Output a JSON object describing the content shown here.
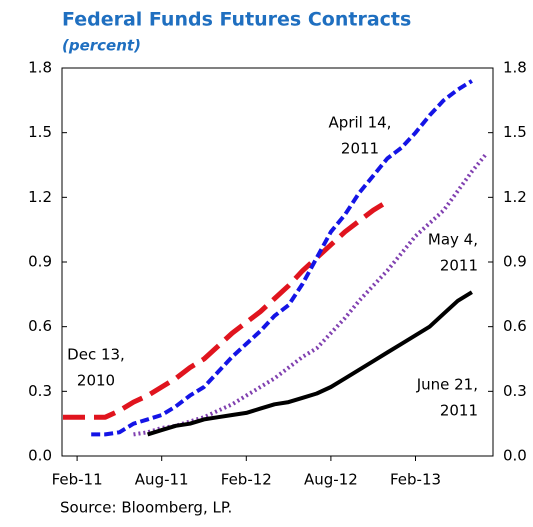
{
  "chart_data": {
    "type": "line",
    "title": "Federal Funds Futures Contracts",
    "subtitle": "(percent)",
    "source": "Source:  Bloomberg, LP.",
    "categories": [
      null,
      "Feb-11",
      null,
      null,
      null,
      null,
      null,
      "Aug-11",
      null,
      null,
      null,
      null,
      null,
      "Feb-12",
      null,
      null,
      null,
      null,
      null,
      "Aug-12",
      null,
      null,
      null,
      null,
      null,
      "Feb-13",
      null,
      null,
      null,
      null,
      null
    ],
    "ylim": [
      0,
      1.8
    ],
    "yticks": [
      {
        "value": 0,
        "label": "0.0"
      },
      0.3,
      0.6,
      0.9,
      1.2,
      1.5,
      1.8
    ],
    "y2lim": [
      0,
      1.8
    ],
    "y2ticks": [
      {
        "value": 0,
        "label": "0.0"
      },
      0.3,
      0.6,
      0.9,
      1.2,
      1.5,
      1.8
    ],
    "series": [
      {
        "label": [
          "Dec 13,",
          "2010"
        ],
        "color": "#e0141e",
        "dash": "22 9",
        "width": 5,
        "values": [
          0.18,
          0.18,
          0.18,
          0.18,
          0.21,
          0.25,
          0.28,
          0.32,
          0.36,
          0.41,
          0.45,
          0.51,
          0.57,
          0.62,
          0.67,
          0.73,
          0.79,
          0.86,
          0.92,
          0.98,
          1.04,
          1.09,
          1.14,
          1.18,
          null,
          null,
          null,
          null,
          null,
          null,
          null
        ]
      },
      {
        "label": [
          "April 14,",
          "2011"
        ],
        "color": "#1414e6",
        "dash": "9 4",
        "width": 4,
        "values": [
          null,
          null,
          0.1,
          0.1,
          0.11,
          0.15,
          0.17,
          0.19,
          0.23,
          0.28,
          0.32,
          0.39,
          0.46,
          0.52,
          0.58,
          0.65,
          0.7,
          0.8,
          0.92,
          1.04,
          1.12,
          1.22,
          1.3,
          1.38,
          1.43,
          1.5,
          1.58,
          1.65,
          1.7,
          1.74,
          null
        ]
      },
      {
        "label": [
          "May 4,",
          "2011"
        ],
        "color": "#8040b0",
        "dash": "2 3",
        "width": 4,
        "values": [
          null,
          null,
          null,
          null,
          null,
          0.1,
          0.11,
          0.13,
          0.14,
          0.16,
          0.18,
          0.21,
          0.24,
          0.28,
          0.32,
          0.36,
          0.41,
          0.46,
          0.5,
          0.57,
          0.64,
          0.72,
          0.79,
          0.86,
          0.94,
          1.02,
          1.08,
          1.14,
          1.23,
          1.32,
          1.4
        ]
      },
      {
        "label": [
          "June 21,",
          "2011"
        ],
        "color": "#000000",
        "dash": "none",
        "width": 4,
        "values": [
          null,
          null,
          null,
          null,
          null,
          null,
          0.1,
          0.12,
          0.14,
          0.15,
          0.17,
          0.18,
          0.19,
          0.2,
          0.22,
          0.24,
          0.25,
          0.27,
          0.29,
          0.32,
          0.36,
          0.4,
          0.44,
          0.48,
          0.52,
          0.56,
          0.6,
          0.66,
          0.72,
          0.76,
          null
        ]
      }
    ]
  }
}
